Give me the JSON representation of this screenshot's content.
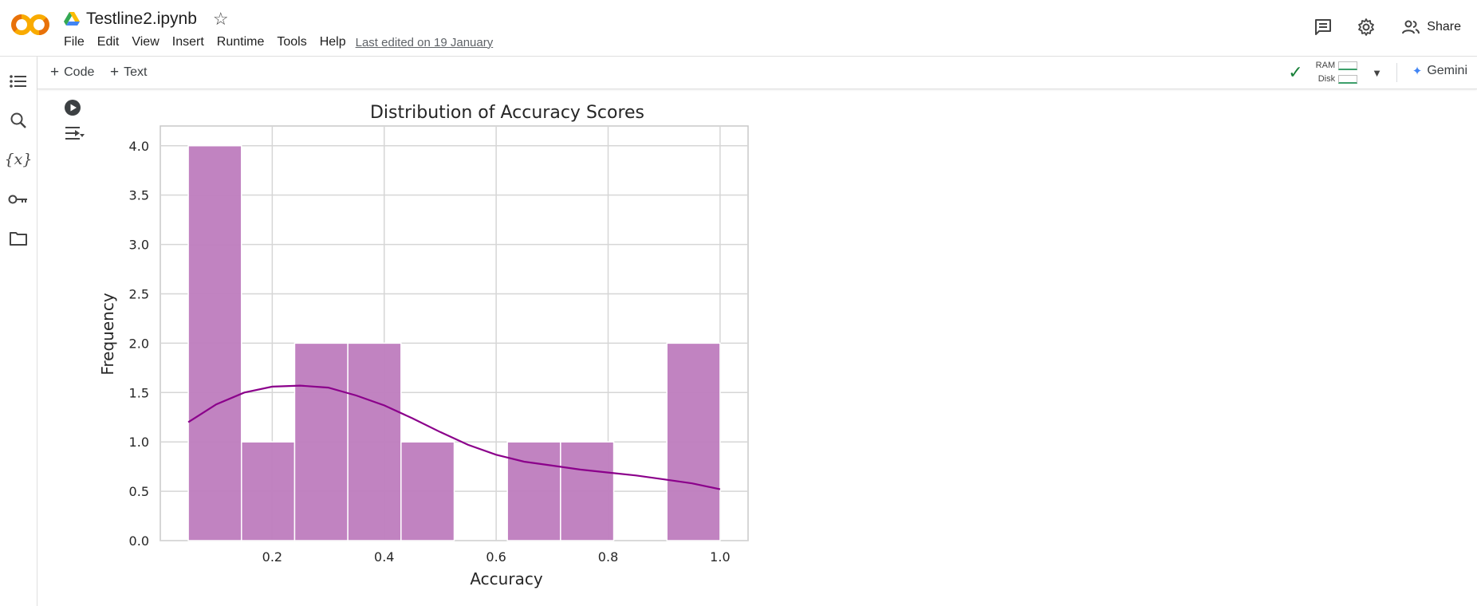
{
  "app": {
    "title": "Testline2.ipynb",
    "last_edited": "Last edited on 19 January",
    "menu": [
      "File",
      "Edit",
      "View",
      "Insert",
      "Runtime",
      "Tools",
      "Help"
    ],
    "share_label": "Share"
  },
  "toolbar": {
    "add_code": "Code",
    "add_text": "Text",
    "ram_label": "RAM",
    "disk_label": "Disk",
    "gemini_label": "Gemini"
  },
  "colors": {
    "bar_fill": "#bf7fbf",
    "kde_line": "#8b008b",
    "brand_orange": "#f9ab00",
    "check_green": "#188038"
  },
  "icons": {
    "rail": [
      "toc-icon",
      "search-icon",
      "variables-icon",
      "key-icon",
      "folder-icon"
    ]
  },
  "chart_data": {
    "type": "bar",
    "title": "Distribution of Accuracy Scores",
    "xlabel": "Accuracy",
    "ylabel": "Frequency",
    "xlim": [
      0.0,
      1.05
    ],
    "ylim": [
      0,
      4.2
    ],
    "xticks": [
      "0.2",
      "0.4",
      "0.6",
      "0.8",
      "1.0"
    ],
    "yticks": [
      "0.0",
      "0.5",
      "1.0",
      "1.5",
      "2.0",
      "2.5",
      "3.0",
      "3.5",
      "4.0"
    ],
    "bins": [
      {
        "x0": 0.05,
        "x1": 0.145,
        "count": 4
      },
      {
        "x0": 0.145,
        "x1": 0.24,
        "count": 1
      },
      {
        "x0": 0.24,
        "x1": 0.335,
        "count": 2
      },
      {
        "x0": 0.335,
        "x1": 0.43,
        "count": 2
      },
      {
        "x0": 0.43,
        "x1": 0.525,
        "count": 1
      },
      {
        "x0": 0.525,
        "x1": 0.62,
        "count": 0
      },
      {
        "x0": 0.62,
        "x1": 0.715,
        "count": 1
      },
      {
        "x0": 0.715,
        "x1": 0.81,
        "count": 1
      },
      {
        "x0": 0.81,
        "x1": 0.905,
        "count": 0
      },
      {
        "x0": 0.905,
        "x1": 1.0,
        "count": 2
      }
    ],
    "kde": {
      "x": [
        0.05,
        0.1,
        0.15,
        0.2,
        0.25,
        0.3,
        0.35,
        0.4,
        0.45,
        0.5,
        0.55,
        0.6,
        0.65,
        0.7,
        0.75,
        0.8,
        0.85,
        0.9,
        0.95,
        1.0
      ],
      "y": [
        1.2,
        1.38,
        1.5,
        1.56,
        1.57,
        1.55,
        1.47,
        1.37,
        1.24,
        1.1,
        0.97,
        0.87,
        0.8,
        0.76,
        0.72,
        0.69,
        0.66,
        0.62,
        0.58,
        0.52
      ]
    },
    "grid": true
  }
}
